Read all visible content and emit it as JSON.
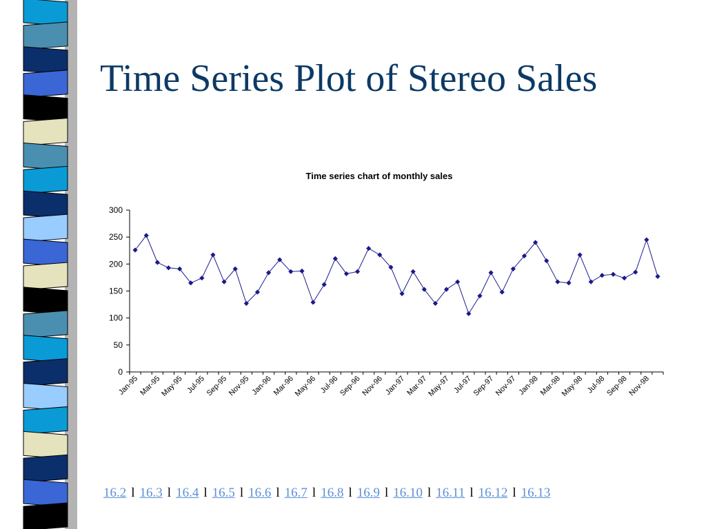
{
  "slide": {
    "title": "Time Series Plot of Stereo Sales"
  },
  "decor": {
    "strip_colors": [
      "#0a9bd6",
      "#4a8fb0",
      "#0b2f6a",
      "#3a66d6",
      "#000000",
      "#e4e3bd",
      "#4a8fb0",
      "#0a9bd6",
      "#0b2f6a",
      "#99ccff",
      "#3a66d6",
      "#e4e3bd",
      "#000000",
      "#4a8fb0",
      "#0a9bd6",
      "#0b2f6a",
      "#99ccff",
      "#0a9bd6",
      "#e4e3bd",
      "#0b2f6a",
      "#3a66d6",
      "#000000"
    ],
    "shadow_color": "#b3b3b3"
  },
  "chart_data": {
    "type": "line",
    "title": "Time series chart of monthly sales",
    "xlabel": "",
    "ylabel": "",
    "ylim": [
      0,
      300
    ],
    "yticks": [
      0,
      50,
      100,
      150,
      200,
      250,
      300
    ],
    "x_tick_labels": [
      "Jan-95",
      "Mar-95",
      "May-95",
      "Jul-95",
      "Sep-95",
      "Nov-95",
      "Jan-96",
      "Mar-96",
      "May-96",
      "Jul-96",
      "Sep-96",
      "Nov-96",
      "Jan-97",
      "Mar-97",
      "May-97",
      "Jul-97",
      "Sep-97",
      "Nov-97",
      "Jan-98",
      "Mar-98",
      "May-98",
      "Jul-98",
      "Sep-98",
      "Nov-98"
    ],
    "x_tick_every": 2,
    "grid": false,
    "legend": "none",
    "series_color": "#1a1a8c",
    "values": [
      226,
      253,
      203,
      193,
      191,
      165,
      174,
      217,
      167,
      191,
      127,
      148,
      184,
      208,
      186,
      187,
      129,
      162,
      210,
      182,
      186,
      229,
      217,
      194,
      145,
      186,
      153,
      127,
      153,
      167,
      108,
      141,
      184,
      148,
      191,
      215,
      240,
      206,
      167,
      165,
      217,
      167,
      179,
      181,
      174,
      185,
      245,
      177
    ]
  },
  "nav": {
    "links": [
      "16.2",
      "16.3",
      "16.4",
      "16.5",
      "16.6",
      "16.7",
      "16.8",
      "16.9",
      "16.10",
      "16.11",
      "16.12",
      "16.13"
    ],
    "separator": "l"
  }
}
